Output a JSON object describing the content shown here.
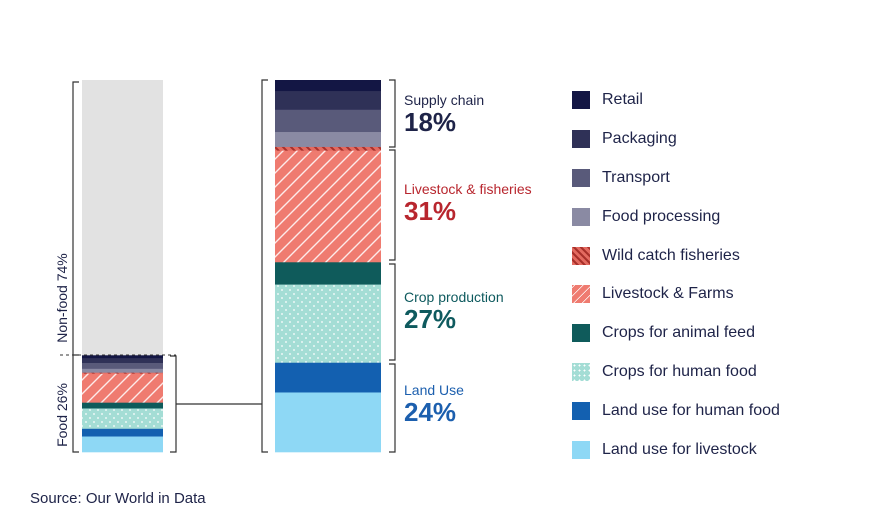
{
  "chart_data": {
    "type": "stacked-bar",
    "overview": {
      "segments": [
        {
          "name": "Food",
          "value": 26,
          "label": "Food 26%"
        },
        {
          "name": "Non-food",
          "value": 74,
          "label": "Non-food 74%"
        }
      ]
    },
    "breakdown": {
      "series": [
        {
          "name": "Retail",
          "value": 3,
          "color": "#131644",
          "pattern": "solid"
        },
        {
          "name": "Packaging",
          "value": 5,
          "color": "#2f3157",
          "pattern": "solid"
        },
        {
          "name": "Transport",
          "value": 6,
          "color": "#595a7a",
          "pattern": "solid"
        },
        {
          "name": "Food processing",
          "value": 4,
          "color": "#8a8aa3",
          "pattern": "solid"
        },
        {
          "name": "Wild catch fisheries",
          "value": 1,
          "color": "#c8453f",
          "pattern": "hatch-dark"
        },
        {
          "name": "Livestock & Farms",
          "value": 30,
          "color": "#ef7b70",
          "pattern": "hatch"
        },
        {
          "name": "Crops for animal feed",
          "value": 6,
          "color": "#0f5b5b",
          "pattern": "solid"
        },
        {
          "name": "Crops for human food",
          "value": 21,
          "color": "#a4ddd5",
          "pattern": "dots"
        },
        {
          "name": "Land use for human food",
          "value": 8,
          "color": "#1360b0",
          "pattern": "solid"
        },
        {
          "name": "Land use for livestock",
          "value": 16,
          "color": "#8ed8f5",
          "pattern": "solid"
        }
      ],
      "groups": [
        {
          "name": "Supply chain",
          "pct": "18%",
          "color": "#1e2348"
        },
        {
          "name": "Livestock & fisheries",
          "pct": "31%",
          "color": "#b8262e"
        },
        {
          "name": "Crop production",
          "pct": "27%",
          "color": "#0e5a5e"
        },
        {
          "name": "Land Use",
          "pct": "24%",
          "color": "#1c5fae"
        }
      ]
    }
  },
  "source": "Source: Our World in Data"
}
